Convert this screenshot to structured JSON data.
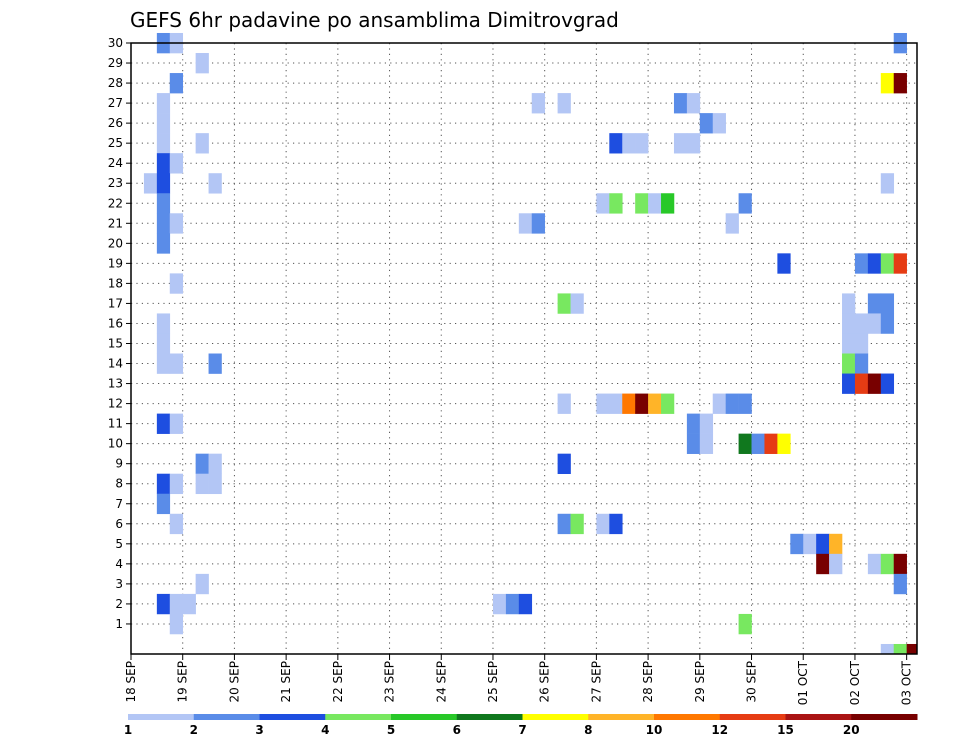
{
  "chart_data": {
    "type": "heatmap",
    "title": "GEFS 6hr padavine po ansamblima Dimitrovgrad",
    "xlabel": "",
    "ylabel": "",
    "x_ticks": [
      "18 SEP",
      "19 SEP",
      "20 SEP",
      "21 SEP",
      "22 SEP",
      "23 SEP",
      "24 SEP",
      "25 SEP",
      "26 SEP",
      "27 SEP",
      "28 SEP",
      "29 SEP",
      "30 SEP",
      "01 OCT",
      "02 OCT",
      "03 OCT"
    ],
    "y_ticks": [
      "1",
      "2",
      "3",
      "4",
      "5",
      "6",
      "7",
      "8",
      "9",
      "10",
      "11",
      "12",
      "13",
      "14",
      "15",
      "16",
      "17",
      "18",
      "19",
      "20",
      "21",
      "22",
      "23",
      "24",
      "25",
      "26",
      "27",
      "28",
      "29",
      "30"
    ],
    "y_range": [
      0,
      30
    ],
    "grid": true,
    "legend_position": "bottom",
    "legend_labels": [
      "1",
      "2",
      "3",
      "4",
      "5",
      "6",
      "7",
      "8",
      "10",
      "12",
      "15",
      "20"
    ],
    "legend_colors": [
      "#b3c6f5",
      "#5a8ce8",
      "#1e4ee0",
      "#78e860",
      "#28c828",
      "#10781e",
      "#ffff00",
      "#ffb428",
      "#ff7800",
      "#e63c14",
      "#aa1414",
      "#780000"
    ],
    "cell_note": "cells: [member, column index of 6h step (4 per day, column 0 begins 18 SEP 00z), color class index into legend_colors]",
    "cells": [
      [
        30,
        2,
        1
      ],
      [
        30,
        3,
        0
      ],
      [
        30,
        59,
        1
      ],
      [
        29,
        5,
        0
      ],
      [
        28,
        3,
        1
      ],
      [
        28,
        58,
        6
      ],
      [
        28,
        59,
        11
      ],
      [
        27,
        2,
        0
      ],
      [
        27,
        31,
        0
      ],
      [
        27,
        33,
        0
      ],
      [
        27,
        42,
        1
      ],
      [
        27,
        43,
        0
      ],
      [
        26,
        2,
        0
      ],
      [
        26,
        44,
        1
      ],
      [
        26,
        45,
        0
      ],
      [
        25,
        2,
        0
      ],
      [
        25,
        5,
        0
      ],
      [
        25,
        37,
        2
      ],
      [
        25,
        38,
        0
      ],
      [
        25,
        39,
        0
      ],
      [
        25,
        42,
        0
      ],
      [
        25,
        43,
        0
      ],
      [
        24,
        2,
        2
      ],
      [
        24,
        3,
        0
      ],
      [
        23,
        1,
        0
      ],
      [
        23,
        2,
        2
      ],
      [
        23,
        6,
        0
      ],
      [
        23,
        58,
        0
      ],
      [
        22,
        2,
        1
      ],
      [
        22,
        36,
        0
      ],
      [
        22,
        37,
        3
      ],
      [
        22,
        39,
        3
      ],
      [
        22,
        40,
        0
      ],
      [
        22,
        41,
        4
      ],
      [
        22,
        47,
        1
      ],
      [
        21,
        2,
        1
      ],
      [
        21,
        3,
        0
      ],
      [
        21,
        30,
        0
      ],
      [
        21,
        31,
        1
      ],
      [
        21,
        46,
        0
      ],
      [
        20,
        2,
        1
      ],
      [
        19,
        50,
        2
      ],
      [
        19,
        56,
        1
      ],
      [
        19,
        57,
        2
      ],
      [
        19,
        58,
        3
      ],
      [
        19,
        59,
        9
      ],
      [
        18,
        3,
        0
      ],
      [
        17,
        33,
        3
      ],
      [
        17,
        34,
        0
      ],
      [
        17,
        55,
        0
      ],
      [
        17,
        57,
        1
      ],
      [
        17,
        58,
        1
      ],
      [
        16,
        2,
        0
      ],
      [
        16,
        55,
        0
      ],
      [
        16,
        56,
        0
      ],
      [
        16,
        57,
        0
      ],
      [
        16,
        58,
        1
      ],
      [
        15,
        2,
        0
      ],
      [
        15,
        55,
        0
      ],
      [
        15,
        56,
        0
      ],
      [
        14,
        2,
        0
      ],
      [
        14,
        3,
        0
      ],
      [
        14,
        6,
        1
      ],
      [
        14,
        55,
        3
      ],
      [
        14,
        56,
        1
      ],
      [
        13,
        55,
        2
      ],
      [
        13,
        56,
        9
      ],
      [
        13,
        57,
        11
      ],
      [
        13,
        58,
        2
      ],
      [
        12,
        33,
        0
      ],
      [
        12,
        36,
        0
      ],
      [
        12,
        37,
        0
      ],
      [
        12,
        38,
        8
      ],
      [
        12,
        39,
        11
      ],
      [
        12,
        40,
        7
      ],
      [
        12,
        41,
        3
      ],
      [
        12,
        45,
        0
      ],
      [
        12,
        46,
        1
      ],
      [
        12,
        47,
        1
      ],
      [
        11,
        2,
        2
      ],
      [
        11,
        3,
        0
      ],
      [
        11,
        43,
        1
      ],
      [
        11,
        44,
        0
      ],
      [
        10,
        43,
        1
      ],
      [
        10,
        44,
        0
      ],
      [
        10,
        47,
        5
      ],
      [
        10,
        48,
        1
      ],
      [
        10,
        49,
        9
      ],
      [
        10,
        50,
        6
      ],
      [
        9,
        5,
        1
      ],
      [
        9,
        6,
        0
      ],
      [
        9,
        33,
        2
      ],
      [
        8,
        2,
        2
      ],
      [
        8,
        3,
        0
      ],
      [
        8,
        5,
        0
      ],
      [
        8,
        6,
        0
      ],
      [
        7,
        2,
        1
      ],
      [
        6,
        3,
        0
      ],
      [
        6,
        33,
        1
      ],
      [
        6,
        34,
        3
      ],
      [
        6,
        36,
        0
      ],
      [
        6,
        37,
        2
      ],
      [
        5,
        51,
        1
      ],
      [
        5,
        52,
        0
      ],
      [
        5,
        53,
        2
      ],
      [
        5,
        54,
        7
      ],
      [
        4,
        53,
        11
      ],
      [
        4,
        54,
        0
      ],
      [
        4,
        57,
        0
      ],
      [
        4,
        58,
        3
      ],
      [
        4,
        59,
        11
      ],
      [
        3,
        5,
        0
      ],
      [
        3,
        59,
        1
      ],
      [
        2,
        2,
        2
      ],
      [
        2,
        3,
        0
      ],
      [
        2,
        4,
        0
      ],
      [
        2,
        28,
        0
      ],
      [
        2,
        29,
        1
      ],
      [
        2,
        30,
        2
      ],
      [
        1,
        3,
        0
      ],
      [
        1,
        47,
        3
      ],
      [
        0,
        58,
        0
      ],
      [
        0,
        59,
        3
      ],
      [
        0,
        60,
        11
      ]
    ]
  }
}
